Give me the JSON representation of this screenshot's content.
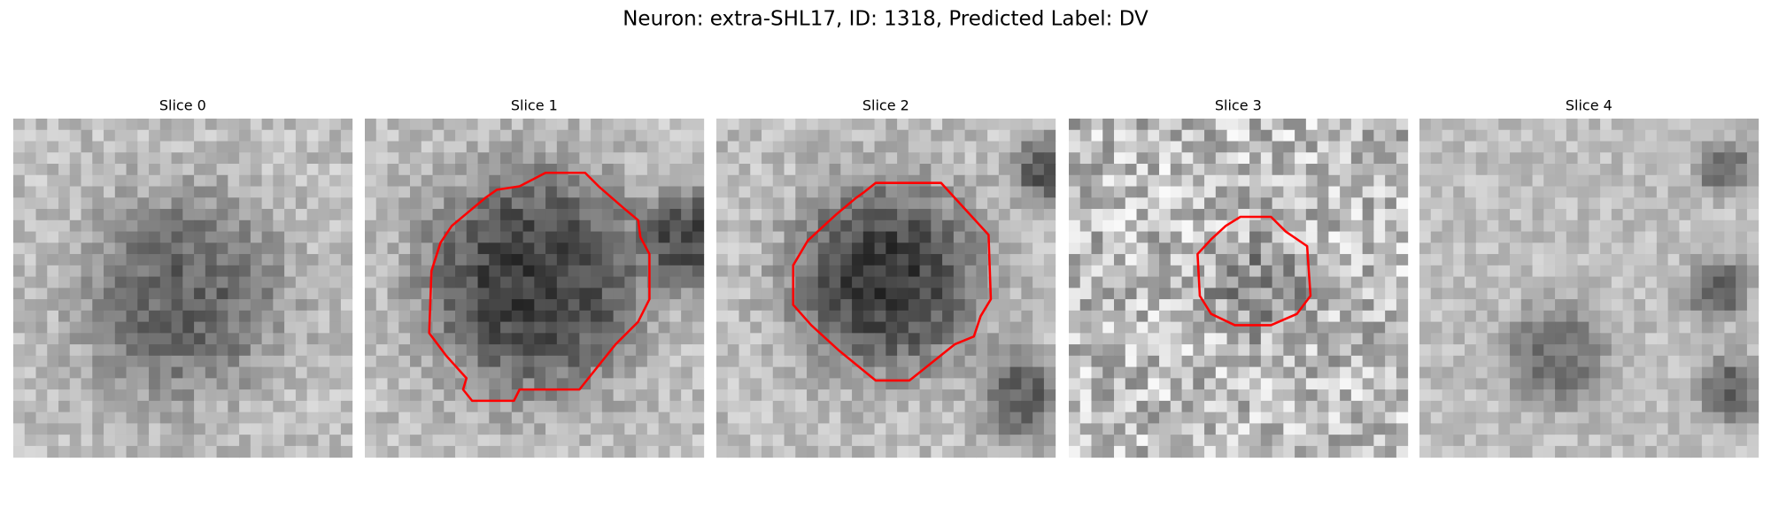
{
  "header": {
    "title": "Neuron: extra-SHL17, ID: 1318, Predicted Label: DV"
  },
  "panels": [
    {
      "title": "Slice 0"
    },
    {
      "title": "Slice 1"
    },
    {
      "title": "Slice 2"
    },
    {
      "title": "Slice 3"
    },
    {
      "title": "Slice 4"
    }
  ]
}
